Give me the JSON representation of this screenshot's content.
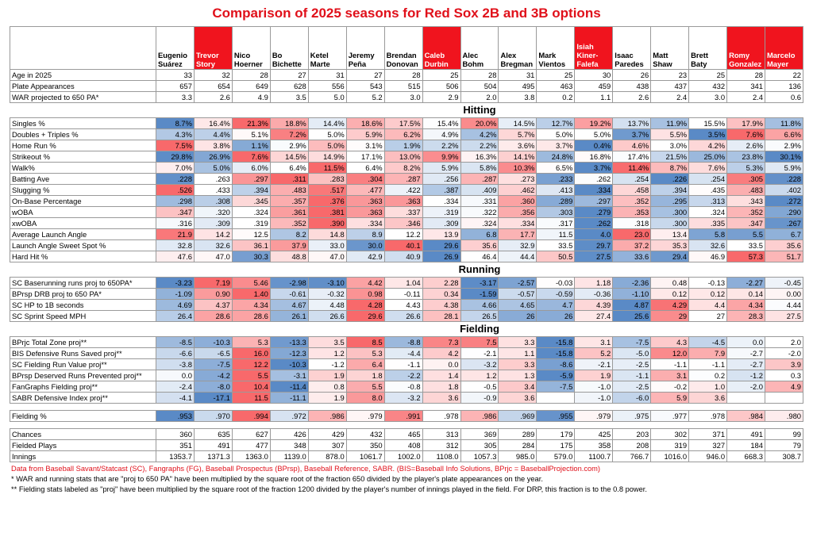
{
  "title": "Comparison of 2025 seasons for Red Sox 2B and 3B options",
  "table": {
    "columns": [
      {
        "name": "Eugenio Suárez",
        "highlight": false
      },
      {
        "name": "Trevor Story",
        "highlight": true
      },
      {
        "name": "Nico Hoerner",
        "highlight": false
      },
      {
        "name": "Bo Bichette",
        "highlight": false
      },
      {
        "name": "Ketel Marte",
        "highlight": false
      },
      {
        "name": "Jeremy Peña",
        "highlight": false
      },
      {
        "name": "Brendan Donovan",
        "highlight": false
      },
      {
        "name": "Caleb Durbin",
        "highlight": true
      },
      {
        "name": "Alec Bohm",
        "highlight": false
      },
      {
        "name": "Alex Bregman",
        "highlight": false
      },
      {
        "name": "Mark Vientos",
        "highlight": false
      },
      {
        "name": "Isiah Kiner-Falefa",
        "highlight": true
      },
      {
        "name": "Isaac Paredes",
        "highlight": false
      },
      {
        "name": "Matt Shaw",
        "highlight": false
      },
      {
        "name": "Brett Baty",
        "highlight": false
      },
      {
        "name": "Romy Gonzalez",
        "highlight": true
      },
      {
        "name": "Marcelo Mayer",
        "highlight": true
      }
    ],
    "sections": [
      {
        "rows": [
          {
            "label": "Age in 2025",
            "cells": [
              "33",
              "32",
              "28",
              "27",
              "31",
              "27",
              "28",
              "25",
              "28",
              "31",
              "25",
              "30",
              "26",
              "23",
              "25",
              "28",
              "22"
            ]
          },
          {
            "label": "Plate Appearances",
            "cells": [
              "657",
              "654",
              "649",
              "628",
              "556",
              "543",
              "515",
              "506",
              "504",
              "495",
              "463",
              "459",
              "438",
              "437",
              "432",
              "341",
              "136"
            ]
          },
          {
            "label": "WAR projected to 650 PA*",
            "cells": [
              "3.3",
              "2.6",
              "4.9",
              "3.5",
              "5.0",
              "5.2",
              "3.0",
              "2.9",
              "2.0",
              "3.8",
              "0.2",
              "1.1",
              "2.6",
              "2.4",
              "3.0",
              "2.4",
              "0.6"
            ]
          }
        ]
      },
      {
        "heading": "Hitting",
        "rows": [
          {
            "label": "Singles %",
            "color_scale": "red-high",
            "cells": [
              "8.7%",
              "16.4%",
              "21.3%",
              "18.8%",
              "14.4%",
              "18.6%",
              "17.5%",
              "15.4%",
              "20.0%",
              "14.5%",
              "12.7%",
              "19.2%",
              "13.7%",
              "11.9%",
              "15.5%",
              "17.9%",
              "11.8%"
            ]
          },
          {
            "label": "Doubles + Triples %",
            "color_scale": "red-high",
            "cells": [
              "4.3%",
              "4.4%",
              "5.1%",
              "7.2%",
              "5.0%",
              "5.9%",
              "6.2%",
              "4.9%",
              "4.2%",
              "5.7%",
              "5.0%",
              "5.0%",
              "3.7%",
              "5.5%",
              "3.5%",
              "7.6%",
              "6.6%"
            ]
          },
          {
            "label": "Home Run %",
            "color_scale": "red-high",
            "cells": [
              "7.5%",
              "3.8%",
              "1.1%",
              "2.9%",
              "5.0%",
              "3.1%",
              "1.9%",
              "2.2%",
              "2.2%",
              "3.6%",
              "3.7%",
              "0.4%",
              "4.6%",
              "3.0%",
              "4.2%",
              "2.6%",
              "2.9%"
            ]
          },
          {
            "label": "Strikeout %",
            "color_scale": "red-low",
            "cells": [
              "29.8%",
              "26.9%",
              "7.6%",
              "14.5%",
              "14.9%",
              "17.1%",
              "13.0%",
              "9.9%",
              "16.3%",
              "14.1%",
              "24.8%",
              "16.8%",
              "17.4%",
              "21.5%",
              "25.0%",
              "23.8%",
              "30.1%"
            ]
          },
          {
            "label": "Walk%",
            "color_scale": "red-high",
            "cells": [
              "7.0%",
              "5.0%",
              "6.0%",
              "6.4%",
              "11.5%",
              "6.4%",
              "8.2%",
              "5.9%",
              "5.8%",
              "10.3%",
              "6.5%",
              "3.7%",
              "11.4%",
              "8.7%",
              "7.6%",
              "5.3%",
              "5.9%"
            ]
          },
          {
            "label": "Batting Ave",
            "color_scale": "red-high",
            "cells": [
              ".228",
              ".263",
              ".297",
              ".311",
              ".283",
              ".304",
              ".287",
              ".256",
              ".287",
              ".273",
              ".233",
              ".262",
              ".254",
              ".226",
              ".254",
              ".305",
              ".228"
            ]
          },
          {
            "label": "Slugging %",
            "color_scale": "red-high",
            "cells": [
              ".526",
              ".433",
              ".394",
              ".483",
              ".517",
              ".477",
              ".422",
              ".387",
              ".409",
              ".462",
              ".413",
              ".334",
              ".458",
              ".394",
              ".435",
              ".483",
              ".402"
            ]
          },
          {
            "label": "On-Base Percentage",
            "color_scale": "red-high",
            "cells": [
              ".298",
              ".308",
              ".345",
              ".357",
              ".376",
              ".363",
              ".363",
              ".334",
              ".331",
              ".360",
              ".289",
              ".297",
              ".352",
              ".295",
              ".313",
              ".343",
              ".272"
            ]
          },
          {
            "label": "wOBA",
            "color_scale": "red-high",
            "cells": [
              ".347",
              ".320",
              ".324",
              ".361",
              ".381",
              ".363",
              ".337",
              ".319",
              ".322",
              ".356",
              ".303",
              ".279",
              ".353",
              ".300",
              ".324",
              ".352",
              ".290"
            ]
          },
          {
            "label": "xwOBA",
            "color_scale": "red-high",
            "cells": [
              ".316",
              ".309",
              ".319",
              ".352",
              ".390",
              ".334",
              ".346",
              ".309",
              ".324",
              ".334",
              ".317",
              ".262",
              ".318",
              ".300",
              ".335",
              ".347",
              ".267"
            ]
          },
          {
            "label": "Average Launch Angle",
            "color_scale": "red-high",
            "cells": [
              "21.9",
              "14.2",
              "12.5",
              "8.2",
              "14.8",
              "8.9",
              "12.2",
              "13.9",
              "6.8",
              "17.7",
              "11.5",
              "4.0",
              "23.0",
              "13.4",
              "5.8",
              "5.5",
              "6.7"
            ]
          },
          {
            "label": "Launch Angle Sweet Spot %",
            "color_scale": "red-high",
            "cells": [
              "32.8",
              "32.6",
              "36.1",
              "37.9",
              "33.0",
              "30.0",
              "40.1",
              "29.6",
              "35.6",
              "32.9",
              "33.5",
              "29.7",
              "37.2",
              "35.3",
              "32.6",
              "33.5",
              "35.6"
            ]
          },
          {
            "label": "Hard Hit %",
            "color_scale": "red-high",
            "cells": [
              "47.6",
              "47.0",
              "30.3",
              "48.8",
              "47.0",
              "42.9",
              "40.9",
              "26.9",
              "46.4",
              "44.4",
              "50.5",
              "27.5",
              "33.6",
              "29.4",
              "46.9",
              "57.3",
              "51.7"
            ]
          }
        ]
      },
      {
        "heading": "Running",
        "rows": [
          {
            "label": "SC Baserunning runs proj to 650PA*",
            "color_scale": "red-high",
            "cells": [
              "-3.23",
              "7.19",
              "5.46",
              "-2.98",
              "-3.10",
              "4.42",
              "1.04",
              "2.28",
              "-3.17",
              "-2.57",
              "-0.03",
              "1.18",
              "-2.36",
              "0.48",
              "-0.13",
              "-2.27",
              "-0.45"
            ]
          },
          {
            "label": "BPrsp DRB proj to 650 PA*",
            "color_scale": "red-high",
            "cells": [
              "-1.09",
              "0.90",
              "1.40",
              "-0.61",
              "-0.32",
              "0.98",
              "-0.11",
              "0.34",
              "-1.59",
              "-0.57",
              "-0.59",
              "-0.36",
              "-1.10",
              "0.12",
              "0.12",
              "0.14",
              "0.00"
            ]
          },
          {
            "label": "SC HP to 1B seconds",
            "color_scale": "red-low",
            "cells": [
              "4.69",
              "4.37",
              "4.34",
              "4.67",
              "4.48",
              "4.28",
              "4.43",
              "4.38",
              "4.66",
              "4.65",
              "4.7",
              "4.39",
              "4.87",
              "4.29",
              "4.4",
              "4.34",
              "4.44"
            ]
          },
          {
            "label": "SC Sprint Speed MPH",
            "color_scale": "red-high",
            "cells": [
              "26.4",
              "28.6",
              "28.6",
              "26.1",
              "26.6",
              "29.6",
              "26.6",
              "28.1",
              "26.5",
              "26",
              "26",
              "27.4",
              "25.6",
              "29",
              "27",
              "28.3",
              "27.5"
            ]
          }
        ]
      },
      {
        "heading": "Fielding",
        "rows": [
          {
            "label": "BPrjc Total Zone proj**",
            "color_scale": "red-high",
            "cells": [
              "-8.5",
              "-10.3",
              "5.3",
              "-13.3",
              "3.5",
              "8.5",
              "-8.8",
              "7.3",
              "7.5",
              "3.3",
              "-15.8",
              "3.1",
              "-7.5",
              "4.3",
              "-4.5",
              "0.0",
              "2.0"
            ]
          },
          {
            "label": "BIS Defensive Runs Saved proj**",
            "color_scale": "red-high",
            "cells": [
              "-6.6",
              "-6.5",
              "16.0",
              "-12.3",
              "1.2",
              "5.3",
              "-4.4",
              "4.2",
              "-2.1",
              "1.1",
              "-15.8",
              "5.2",
              "-5.0",
              "12.0",
              "7.9",
              "-2.7",
              "-2.0"
            ]
          },
          {
            "label": "SC Fielding Run Value proj**",
            "color_scale": "red-high",
            "cells": [
              "-3.8",
              "-7.5",
              "12.2",
              "-10.3",
              "-1.2",
              "6.4",
              "-1.1",
              "0.0",
              "-3.2",
              "3.3",
              "-8.6",
              "-2.1",
              "-2.5",
              "-1.1",
              "-1.1",
              "-2.7",
              "3.9"
            ]
          },
          {
            "label": "BPrsp Deserved Runs Prevented proj**",
            "color_scale": "red-high",
            "cells": [
              "0.0",
              "-4.2",
              "5.5",
              "-3.1",
              "1.9",
              "1.8",
              "-2.2",
              "1.4",
              "1.2",
              "1.3",
              "-5.9",
              "1.9",
              "-1.1",
              "3.1",
              "0.2",
              "-1.2",
              "0.3"
            ]
          },
          {
            "label": "FanGraphs Fielding proj**",
            "color_scale": "red-high",
            "cells": [
              "-2.4",
              "-8.0",
              "10.4",
              "-11.4",
              "0.8",
              "5.5",
              "-0.8",
              "1.8",
              "-0.5",
              "3.4",
              "-7.5",
              "-1.0",
              "-2.5",
              "-0.2",
              "1.0",
              "-2.0",
              "4.9"
            ]
          },
          {
            "label": "SABR Defensive Index proj**",
            "color_scale": "red-high",
            "cells": [
              "-4.1",
              "-17.1",
              "11.5",
              "-11.1",
              "1.9",
              "8.0",
              "-3.2",
              "3.6",
              "-0.9",
              "3.6",
              null,
              "-1.0",
              "-6.0",
              "5.9",
              "3.6",
              null,
              null
            ]
          }
        ]
      },
      {
        "rows": [
          {
            "label": "Fielding %",
            "color_scale": "red-high",
            "cells": [
              ".953",
              ".970",
              ".994",
              ".972",
              ".986",
              ".979",
              ".991",
              ".978",
              ".986",
              ".969",
              ".955",
              ".979",
              ".975",
              ".977",
              ".978",
              ".984",
              ".980"
            ]
          }
        ]
      },
      {
        "rows": [
          {
            "label": "Chances",
            "cells": [
              "360",
              "635",
              "627",
              "426",
              "429",
              "432",
              "465",
              "313",
              "369",
              "289",
              "179",
              "425",
              "203",
              "302",
              "371",
              "491",
              "99"
            ]
          },
          {
            "label": "Fielded Plays",
            "cells": [
              "351",
              "491",
              "477",
              "348",
              "307",
              "350",
              "408",
              "312",
              "305",
              "284",
              "175",
              "358",
              "208",
              "319",
              "327",
              "184",
              "79"
            ]
          },
          {
            "label": "Innings",
            "cells": [
              "1353.7",
              "1371.3",
              "1363.0",
              "1139.0",
              "878.0",
              "1061.7",
              "1002.0",
              "1108.0",
              "1057.3",
              "985.0",
              "579.0",
              "1100.7",
              "766.7",
              "1016.0",
              "946.0",
              "668.3",
              "308.7"
            ]
          }
        ]
      }
    ]
  },
  "notes": [
    "Data from Baseball Savant/Statcast (SC), Fangraphs (FG), Baseball Prospectus (BPrsp), Baseball Reference, SABR. (BIS=Baseball Info Solutions, BPrjc = BaseballProjection.com)",
    "* WAR and running stats that are \"proj to 650 PA\" have been multiplied by the square root of the fraction 650 divided by the player's plate appearances on the year.",
    "** Fielding stats labeled as \"proj\" have been multiplied by the square root of the fraction 1200 divided by the player's number of innings played in the field. For DRP, this fraction is to the 0.8 power."
  ]
}
